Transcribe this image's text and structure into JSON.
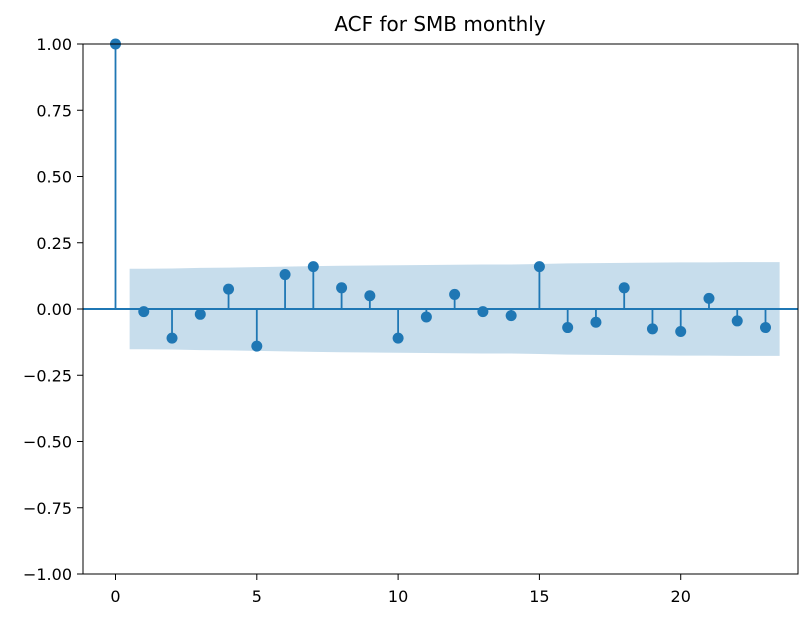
{
  "chart_data": {
    "type": "stem",
    "title": "ACF for SMB monthly",
    "xlabel": "",
    "ylabel": "",
    "xlim": [
      -1.15,
      24.15
    ],
    "ylim": [
      -1.0,
      1.0
    ],
    "xticks": [
      0,
      5,
      10,
      15,
      20
    ],
    "xtick_labels": [
      "0",
      "5",
      "10",
      "15",
      "20"
    ],
    "yticks": [
      -1.0,
      -0.75,
      -0.5,
      -0.25,
      0.0,
      0.25,
      0.5,
      0.75,
      1.0
    ],
    "ytick_labels": [
      "−1.00",
      "−0.75",
      "−0.50",
      "−0.25",
      "0.00",
      "0.25",
      "0.50",
      "0.75",
      "1.00"
    ],
    "grid": false,
    "legend": "none",
    "color": "#1f77b4",
    "confint_color": "#1f77b4",
    "series": [
      {
        "lags": [
          0,
          1,
          2,
          3,
          4,
          5,
          6,
          7,
          8,
          9,
          10,
          11,
          12,
          13,
          14,
          15,
          16,
          17,
          18,
          19,
          20,
          21,
          22,
          23
        ],
        "values": [
          1.0,
          -0.01,
          -0.11,
          -0.02,
          0.075,
          -0.14,
          0.13,
          0.16,
          0.08,
          0.05,
          -0.11,
          -0.03,
          0.055,
          -0.01,
          -0.025,
          0.16,
          -0.07,
          -0.05,
          0.08,
          -0.075,
          -0.085,
          0.04,
          -0.045,
          -0.07
        ]
      }
    ],
    "confidence_band": {
      "x": [
        0.5,
        1,
        2,
        3,
        4,
        5,
        6,
        7,
        8,
        9,
        10,
        11,
        12,
        13,
        14,
        15,
        16,
        17,
        18,
        19,
        20,
        21,
        22,
        23,
        23.5
      ],
      "upper": [
        0.152,
        0.152,
        0.153,
        0.155,
        0.156,
        0.158,
        0.16,
        0.162,
        0.163,
        0.164,
        0.165,
        0.166,
        0.167,
        0.168,
        0.168,
        0.17,
        0.172,
        0.173,
        0.174,
        0.175,
        0.176,
        0.176,
        0.177,
        0.177,
        0.177
      ]
    }
  }
}
